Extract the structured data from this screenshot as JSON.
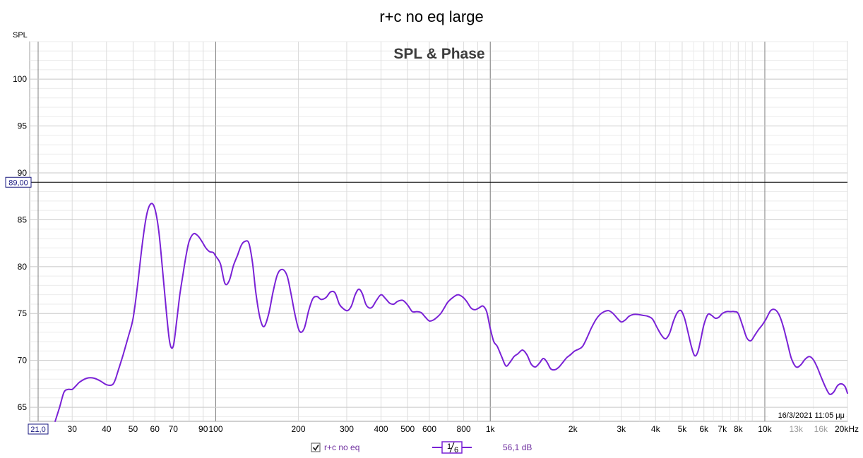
{
  "chart_data": {
    "type": "line",
    "title": "r+c no eq large",
    "panel_title": "SPL & Phase",
    "ylabel": "SPL",
    "xlabel": "",
    "x_scale": "log",
    "xlim": [
      21,
      20000
    ],
    "ylim": [
      63.5,
      104
    ],
    "x_ticks": [
      {
        "value": 30,
        "label": "30"
      },
      {
        "value": 40,
        "label": "40"
      },
      {
        "value": 50,
        "label": "50"
      },
      {
        "value": 60,
        "label": "60"
      },
      {
        "value": 70,
        "label": "70"
      },
      {
        "value": 90,
        "label": "90"
      },
      {
        "value": 100,
        "label": "100"
      },
      {
        "value": 200,
        "label": "200"
      },
      {
        "value": 300,
        "label": "300"
      },
      {
        "value": 400,
        "label": "400"
      },
      {
        "value": 500,
        "label": "500"
      },
      {
        "value": 600,
        "label": "600"
      },
      {
        "value": 800,
        "label": "800"
      },
      {
        "value": 1000,
        "label": "1k"
      },
      {
        "value": 2000,
        "label": "2k"
      },
      {
        "value": 3000,
        "label": "3k"
      },
      {
        "value": 4000,
        "label": "4k"
      },
      {
        "value": 5000,
        "label": "5k"
      },
      {
        "value": 6000,
        "label": "6k"
      },
      {
        "value": 7000,
        "label": "7k"
      },
      {
        "value": 8000,
        "label": "8k"
      },
      {
        "value": 10000,
        "label": "10k"
      },
      {
        "value": 13000,
        "label": "13k",
        "muted": true
      },
      {
        "value": 16000,
        "label": "16k",
        "muted": true
      },
      {
        "value": 20000,
        "label": "20kHz"
      }
    ],
    "y_ticks": [
      65,
      70,
      75,
      80,
      85,
      90,
      95,
      100
    ],
    "grid": true,
    "reference_line": {
      "value": 89,
      "label": "89,00"
    },
    "x_start_label": "21,0",
    "timestamp": "16/3/2021 11:05 μμ",
    "series": [
      {
        "name": "r+c no eq",
        "color": "#7a22d6",
        "x": [
          26,
          27,
          28,
          29,
          30,
          31,
          32,
          34,
          36,
          38,
          40,
          42,
          43,
          44,
          46,
          48,
          50,
          52,
          54,
          56,
          58,
          60,
          62,
          64,
          66,
          68,
          70,
          72,
          74,
          76,
          78,
          80,
          83,
          86,
          89,
          92,
          95,
          98,
          100,
          104,
          108,
          112,
          116,
          120,
          124,
          128,
          132,
          136,
          140,
          145,
          150,
          156,
          162,
          168,
          175,
          182,
          188,
          195,
          202,
          210,
          218,
          226,
          234,
          242,
          252,
          262,
          272,
          282,
          292,
          302,
          312,
          322,
          332,
          342,
          352,
          362,
          372,
          385,
          400,
          415,
          430,
          445,
          460,
          480,
          500,
          520,
          540,
          560,
          580,
          600,
          620,
          640,
          660,
          680,
          700,
          730,
          760,
          790,
          820,
          850,
          880,
          910,
          940,
          970,
          1000,
          1030,
          1060,
          1100,
          1140,
          1180,
          1220,
          1260,
          1310,
          1360,
          1410,
          1460,
          1510,
          1560,
          1610,
          1660,
          1720,
          1780,
          1840,
          1900,
          1960,
          2030,
          2100,
          2170,
          2250,
          2330,
          2420,
          2510,
          2600,
          2700,
          2800,
          2900,
          3000,
          3100,
          3200,
          3320,
          3450,
          3600,
          3750,
          3900,
          4050,
          4200,
          4350,
          4500,
          4650,
          4800,
          4950,
          5100,
          5250,
          5400,
          5550,
          5700,
          5850,
          6000,
          6200,
          6400,
          6600,
          6800,
          7000,
          7250,
          7500,
          7750,
          8000,
          8300,
          8600,
          8900,
          9200,
          9500,
          9800,
          10100,
          10500,
          10900,
          11300,
          11700,
          12100,
          12500,
          13000,
          13500,
          14000,
          14500,
          15000,
          15500,
          16000,
          16600,
          17200,
          17800,
          18400,
          19000,
          19600,
          20000
        ],
        "y": [
          63.4,
          65.0,
          66.6,
          66.9,
          66.9,
          67.3,
          67.7,
          68.1,
          68.1,
          67.8,
          67.4,
          67.4,
          67.9,
          68.8,
          70.6,
          72.5,
          74.5,
          78.2,
          82.4,
          85.5,
          86.7,
          86.2,
          83.8,
          79.7,
          75.4,
          71.9,
          71.5,
          74.1,
          77.0,
          79.2,
          81.2,
          82.7,
          83.5,
          83.3,
          82.7,
          82.0,
          81.6,
          81.5,
          81.1,
          80.3,
          78.2,
          78.5,
          80.1,
          81.2,
          82.3,
          82.7,
          82.5,
          80.5,
          77.2,
          74.5,
          73.6,
          75.0,
          77.4,
          79.2,
          79.7,
          79.0,
          77.1,
          74.7,
          73.1,
          73.4,
          75.3,
          76.6,
          76.8,
          76.5,
          76.7,
          77.3,
          77.2,
          76.0,
          75.5,
          75.3,
          75.8,
          77.0,
          77.6,
          77.1,
          76.0,
          75.6,
          75.7,
          76.4,
          77.0,
          76.6,
          76.1,
          76.0,
          76.3,
          76.4,
          75.9,
          75.2,
          75.2,
          75.1,
          74.6,
          74.2,
          74.3,
          74.6,
          75.0,
          75.6,
          76.2,
          76.7,
          77.0,
          76.8,
          76.3,
          75.6,
          75.4,
          75.6,
          75.8,
          75.2,
          73.4,
          72.0,
          71.5,
          70.4,
          69.4,
          69.8,
          70.4,
          70.7,
          71.1,
          70.6,
          69.6,
          69.3,
          69.7,
          70.2,
          69.8,
          69.1,
          69.0,
          69.3,
          69.8,
          70.3,
          70.6,
          71.0,
          71.2,
          71.5,
          72.4,
          73.4,
          74.3,
          74.9,
          75.2,
          75.3,
          75.0,
          74.5,
          74.1,
          74.3,
          74.7,
          74.9,
          74.9,
          74.8,
          74.7,
          74.4,
          73.5,
          72.7,
          72.3,
          72.9,
          74.2,
          75.1,
          75.3,
          74.5,
          73.0,
          71.5,
          70.5,
          70.9,
          72.3,
          73.8,
          74.9,
          74.8,
          74.5,
          74.6,
          75.0,
          75.2,
          75.2,
          75.2,
          75.0,
          73.7,
          72.4,
          72.1,
          72.7,
          73.3,
          73.8,
          74.4,
          75.3,
          75.4,
          74.8,
          73.5,
          71.8,
          70.2,
          69.3,
          69.5,
          70.1,
          70.4,
          70.1,
          69.3,
          68.3,
          67.2,
          66.4,
          66.6,
          67.3,
          67.5,
          67.2,
          66.5
        ]
      }
    ]
  },
  "legend": {
    "series_label": "r+c no eq",
    "smoothing_numerator": "1",
    "smoothing_denominator": "6",
    "offset_label": "56,1 dB",
    "checked": true
  }
}
